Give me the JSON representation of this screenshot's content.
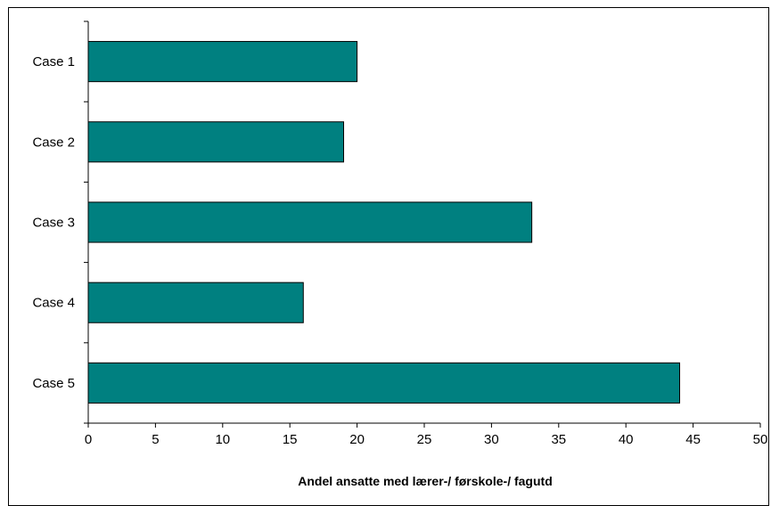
{
  "chart_data": {
    "type": "bar",
    "orientation": "horizontal",
    "title": "",
    "xlabel": "Andel ansatte med lærer-/ førskole-/ fagutd",
    "ylabel": "",
    "categories": [
      "Case 1",
      "Case 2",
      "Case 3",
      "Case 4",
      "Case 5"
    ],
    "values": [
      20,
      19,
      33,
      16,
      44
    ],
    "xlim": [
      0,
      50
    ],
    "xticks": [
      0,
      5,
      10,
      15,
      20,
      25,
      30,
      35,
      40,
      45,
      50
    ],
    "grid": false,
    "legend": "none",
    "bar_color": "#008080",
    "bar_edge_color": "#000000"
  }
}
